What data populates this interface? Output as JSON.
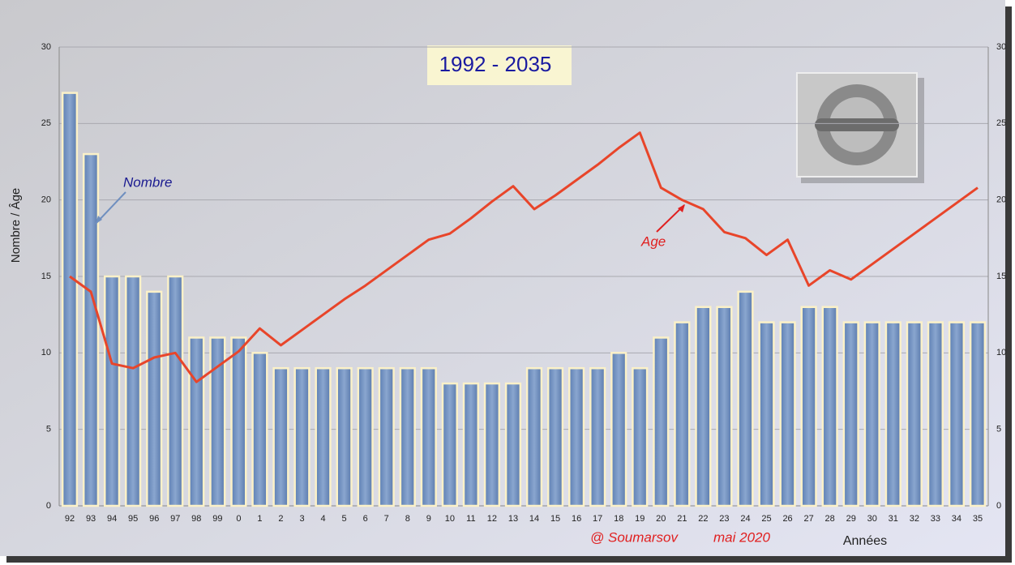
{
  "chart_data": {
    "type": "bar",
    "title": "1992 - 2035",
    "ylabel": "Nombre / Âge",
    "xlabel": "Années",
    "credit": "@ Soumarsov",
    "date": "mai 2020",
    "categories": [
      "92",
      "93",
      "94",
      "95",
      "96",
      "97",
      "98",
      "99",
      "0",
      "1",
      "2",
      "3",
      "4",
      "5",
      "6",
      "7",
      "8",
      "9",
      "10",
      "11",
      "12",
      "13",
      "14",
      "15",
      "16",
      "17",
      "18",
      "19",
      "20",
      "21",
      "22",
      "23",
      "24",
      "25",
      "26",
      "27",
      "28",
      "29",
      "30",
      "31",
      "32",
      "33",
      "34",
      "35"
    ],
    "series": [
      {
        "name": "Nombre",
        "type": "bar",
        "color": "#6f8fbf",
        "values": [
          27,
          23,
          15,
          15,
          14,
          15,
          11,
          11,
          11,
          10,
          9,
          9,
          9,
          9,
          9,
          9,
          9,
          9,
          8,
          8,
          8,
          8,
          9,
          9,
          9,
          9,
          10,
          9,
          11,
          12,
          13,
          13,
          14,
          12,
          12,
          13,
          13,
          12,
          12,
          12,
          12,
          12,
          12,
          12
        ]
      },
      {
        "name": "Age",
        "type": "line",
        "color": "#e8452a",
        "values": [
          15,
          14,
          9.3,
          9,
          9.7,
          10,
          8.1,
          9.1,
          10.1,
          11.6,
          10.5,
          11.5,
          12.5,
          13.5,
          14.4,
          15.4,
          16.4,
          17.4,
          17.8,
          18.8,
          19.9,
          20.9,
          19.4,
          20.3,
          21.3,
          22.3,
          23.4,
          24.4,
          20.8,
          20,
          19.4,
          17.9,
          17.5,
          16.4,
          17.4,
          14.4,
          15.4,
          14.8,
          15.8,
          16.8,
          17.8,
          18.8,
          19.8,
          20.8
        ]
      }
    ],
    "ylim": [
      0,
      30
    ],
    "yticks": [
      0,
      5,
      10,
      15,
      20,
      25,
      30
    ],
    "y2lim": [
      0,
      30
    ],
    "y2ticks": [
      0,
      5,
      10,
      15,
      20,
      25,
      30
    ],
    "grid": true
  }
}
